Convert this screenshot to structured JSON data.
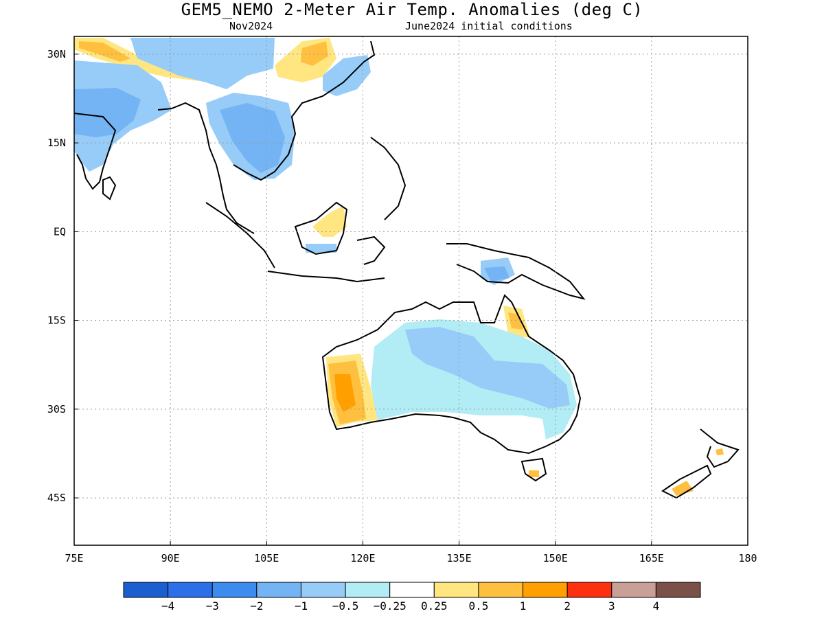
{
  "title": "GEM5_NEMO 2-Meter Air Temp. Anomalies (deg C)",
  "subtitle_left": "Nov2024",
  "subtitle_right": "June2024 initial conditions",
  "map": {
    "region": "Indian Ocean to Western Pacific / Maritime Continent and Australia",
    "lon_range": [
      75,
      180
    ],
    "lat_range": [
      -53,
      33
    ],
    "lon_ticks": [
      {
        "value": 75,
        "label": "75E"
      },
      {
        "value": 90,
        "label": "90E"
      },
      {
        "value": 105,
        "label": "105E"
      },
      {
        "value": 120,
        "label": "120E"
      },
      {
        "value": 135,
        "label": "135E"
      },
      {
        "value": 150,
        "label": "150E"
      },
      {
        "value": 165,
        "label": "165E"
      },
      {
        "value": 180,
        "label": "180"
      }
    ],
    "lat_ticks": [
      {
        "value": 30,
        "label": "30N"
      },
      {
        "value": 15,
        "label": "15N"
      },
      {
        "value": 0,
        "label": "EQ"
      },
      {
        "value": -15,
        "label": "15S"
      },
      {
        "value": -30,
        "label": "30S"
      },
      {
        "value": -45,
        "label": "45S"
      }
    ],
    "grid": "dotted"
  },
  "colorbar": {
    "colors": [
      "#1a5fcf",
      "#2b70e8",
      "#3c8cf0",
      "#74b4f5",
      "#96ccf7",
      "#b2ecf5",
      "#ffffff",
      "#ffe680",
      "#ffc040",
      "#ffa000",
      "#ff3010",
      "#c8a098",
      "#7a5048"
    ],
    "labels": [
      "−4",
      "−3",
      "−2",
      "−1",
      "−0.5",
      "−0.25",
      "0.25",
      "0.5",
      "1",
      "2",
      "3",
      "4"
    ]
  },
  "anomaly_regions": [
    {
      "name": "India",
      "level": "-1",
      "color": "#74b4f5"
    },
    {
      "name": "Indochina",
      "level": "-1",
      "color": "#74b4f5"
    },
    {
      "name": "Tibet / South China",
      "level": "-0.5",
      "color": "#96ccf7"
    },
    {
      "name": "Himalaya north edge",
      "level": "0.5",
      "color": "#ffe680"
    },
    {
      "name": "Central China",
      "level": "0.5",
      "color": "#ffe680"
    },
    {
      "name": "Borneo",
      "level": "0.25",
      "color": "#ffe680"
    },
    {
      "name": "Australia interior",
      "level": "-0.25",
      "color": "#b2ecf5"
    },
    {
      "name": "Australia east",
      "level": "-0.5",
      "color": "#96ccf7"
    },
    {
      "name": "Western Australia coast",
      "level": "1",
      "color": "#ffc040"
    },
    {
      "name": "Queensland north",
      "level": "0.5",
      "color": "#ffe680"
    },
    {
      "name": "Papua New Guinea",
      "level": "-0.5",
      "color": "#96ccf7"
    },
    {
      "name": "New Zealand",
      "level": "1",
      "color": "#ffc040"
    }
  ]
}
